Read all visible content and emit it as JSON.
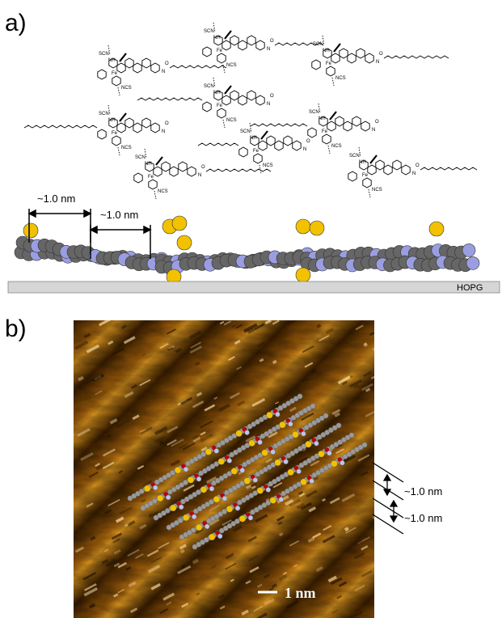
{
  "panel_a": {
    "label": "a)",
    "dimension_labels": [
      "~1.0 nm",
      "~1.0 nm"
    ],
    "substrate_label": "HOPG",
    "atom_labels": {
      "fe": "Fe",
      "scn": "SCN",
      "ncs": "NCS",
      "nh": "NH",
      "h": "H",
      "n": "N",
      "o": "O"
    }
  },
  "panel_b": {
    "label": "b)",
    "spacing_labels": [
      "~1.0 nm",
      "~1.0 nm"
    ],
    "scale_bar_label": "1 nm"
  },
  "colors": {
    "carbon": "#666666",
    "nitrogen": "#9a9ee0",
    "sulfur": "#f2c200",
    "oxygen": "#c00000",
    "substrate": "#cfcfcf",
    "afm_dark": "#3a1f00",
    "afm_light": "#d98c1a"
  }
}
